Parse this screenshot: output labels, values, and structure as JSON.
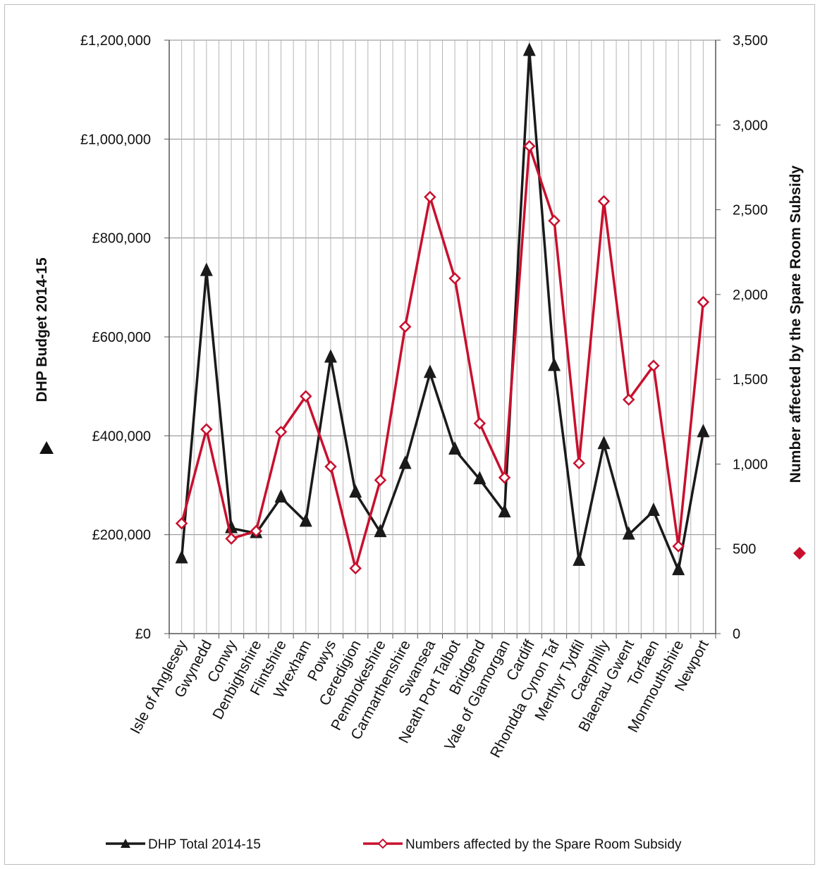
{
  "chart_data": {
    "type": "line",
    "categories": [
      "Isle of Anglesey",
      "Gwynedd",
      "Conwy",
      "Denbighshire",
      "Flintshire",
      "Wrexham",
      "Powys",
      "Ceredigion",
      "Pembrokeshire",
      "Carmarthenshire",
      "Swansea",
      "Neath Port Talbot",
      "Bridgend",
      "Vale of Glamorgan",
      "Cardiff",
      "Rhondda Cynon Taf",
      "Merthyr Tydfil",
      "Caerphilly",
      "Blaenau Gwent",
      "Torfaen",
      "Monmouthshire",
      "Newport"
    ],
    "series": [
      {
        "name": "DHP Total 2014-15",
        "axis": "left",
        "color": "#1a1a1a",
        "marker": "triangle",
        "values": [
          152000,
          733000,
          213000,
          203000,
          275000,
          226000,
          558000,
          285000,
          205000,
          343000,
          527000,
          372000,
          312000,
          245000,
          1178000,
          541000,
          147000,
          383000,
          200000,
          248000,
          128000,
          407000
        ]
      },
      {
        "name": "Numbers affected by the Spare Room Subsidy",
        "axis": "right",
        "color": "#c8102e",
        "marker": "diamond",
        "values": [
          650,
          1205,
          560,
          605,
          1190,
          1400,
          985,
          385,
          905,
          1810,
          2575,
          2095,
          1240,
          920,
          2875,
          2435,
          1005,
          2550,
          1380,
          1580,
          515,
          1955
        ]
      }
    ],
    "y_left": {
      "label": "DHP Budget 2014-15",
      "range": [
        0,
        1200000
      ],
      "ticks": [
        "£0",
        "£200,000",
        "£400,000",
        "£600,000",
        "£800,000",
        "£1,000,000",
        "£1,200,000"
      ]
    },
    "y_right": {
      "label": "Number  affected by the Spare Room Subsidy",
      "range": [
        0,
        3500
      ],
      "ticks": [
        "0",
        "500",
        "1,000",
        "1,500",
        "2,000",
        "2,500",
        "3,000",
        "3,500"
      ]
    },
    "grid": true,
    "legend": {
      "placement": "bottom",
      "items": [
        "DHP Total 2014-15",
        "Numbers affected by the Spare Room Subsidy"
      ]
    }
  }
}
